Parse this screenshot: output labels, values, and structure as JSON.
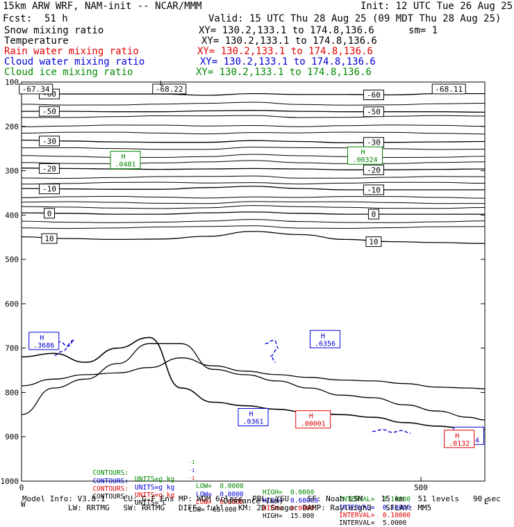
{
  "header": {
    "model": "15km ARW WRF, NAM-init -- NCAR/MMM",
    "init": "Init: 12 UTC Tue 26 Aug 25",
    "fcst_label": "Fcst:",
    "fcst_value": "51 h",
    "valid": "Valid: 15 UTC Thu 28 Aug 25 (09 MDT Thu 28 Aug 25)",
    "fields": [
      {
        "name": "Snow mixing ratio",
        "xy": "XY= 130.2,133.1 to 174.8,136.6",
        "extra": "sm= 1",
        "color": "#000000"
      },
      {
        "name": "Temperature",
        "xy": "XY= 130.2,133.1 to 174.8,136.6",
        "extra": "",
        "color": "#000000"
      },
      {
        "name": "Rain water mixing ratio",
        "xy": "XY= 130.2,133.1 to 174.8,136.6",
        "extra": "",
        "color": "#e00000"
      },
      {
        "name": "Cloud water mixing ratio",
        "xy": "XY= 130.2,133.1 to 174.8,136.6",
        "extra": "",
        "color": "#0000d8"
      },
      {
        "name": "Cloud ice mixing ratio",
        "xy": "XY= 130.2,133.1 to 174.8,136.6",
        "extra": "",
        "color": "#008800"
      }
    ]
  },
  "chart_data": {
    "type": "line",
    "title": "",
    "xlabel": "Distance (km)",
    "ylabel": "",
    "x_ticks": [
      "0",
      "500"
    ],
    "xlim": [
      0,
      580
    ],
    "y_ticks": [
      "100",
      "200",
      "300",
      "400",
      "500",
      "600",
      "700",
      "800",
      "900",
      "1000"
    ],
    "ylim": [
      1000,
      100
    ],
    "y_axis": "pressure (hPa), decreasing upward",
    "temperature_isotherms": [
      {
        "label": "-60",
        "y_levels_hPa": [
          126,
          127,
          127,
          127,
          130,
          126,
          128,
          128,
          129,
          126,
          126
        ]
      },
      {
        "label": "-50",
        "y_levels_hPa": [
          166,
          166,
          167,
          167,
          165,
          164,
          166,
          167,
          167,
          167,
          168
        ]
      },
      {
        "label": "-30",
        "y_levels_hPa": [
          231,
          233,
          235,
          236,
          236,
          232,
          234,
          237,
          236,
          235,
          234
        ]
      },
      {
        "label": "-20",
        "y_levels_hPa": [
          294,
          295,
          296,
          297,
          296,
          295,
          296,
          298,
          298,
          297,
          296
        ]
      },
      {
        "label": "-10",
        "y_levels_hPa": [
          340,
          341,
          342,
          342,
          338,
          335,
          340,
          343,
          343,
          343,
          343
        ]
      },
      {
        "label": "0",
        "y_levels_hPa": [
          395,
          396,
          398,
          398,
          395,
          393,
          396,
          398,
          398,
          398,
          398
        ]
      },
      {
        "label": "10",
        "y_levels_hPa": [
          449,
          453,
          455,
          454,
          448,
          437,
          444,
          455,
          460,
          462,
          464
        ]
      }
    ],
    "unlabeled_isotherms_hPa": [
      150,
      178,
      199,
      215,
      250,
      268,
      282,
      315,
      328,
      360,
      372,
      383,
      415,
      428
    ],
    "terrain_surface": {
      "x_km": [
        0,
        40,
        80,
        120,
        160,
        200,
        240,
        280,
        320,
        360,
        400,
        440,
        480,
        520,
        560,
        580
      ],
      "pressure_hPa": [
        720,
        712,
        732,
        700,
        676,
        790,
        822,
        830,
        838,
        846,
        850,
        856,
        868,
        876,
        882,
        884
      ]
    },
    "lower_isotherms": [
      {
        "x_km": [
          0,
          40,
          80,
          120,
          160,
          200,
          240,
          280,
          320,
          360,
          400,
          440,
          480,
          520,
          560,
          580
        ],
        "pressure_hPa": [
          850,
          790,
          770,
          735,
          690,
          690,
          748,
          760,
          774,
          790,
          806,
          812,
          828,
          842,
          856,
          862
        ]
      },
      {
        "x_km": [
          0,
          40,
          80,
          120,
          160,
          200,
          240,
          280,
          320,
          360,
          400,
          440,
          480,
          520,
          560,
          580
        ],
        "pressure_hPa": [
          785,
          770,
          760,
          756,
          744,
          722,
          740,
          752,
          760,
          766,
          772,
          774,
          780,
          788,
          790,
          792
        ]
      }
    ],
    "max_markers": [
      {
        "field": "Cloud ice mixing ratio",
        "label": "H",
        "value": ".0481",
        "x_km": 130,
        "p_hPa": 275,
        "color": "#008800"
      },
      {
        "field": "Cloud ice mixing ratio",
        "label": "H",
        "value": ".00324",
        "x_km": 430,
        "p_hPa": 265,
        "color": "#008800"
      },
      {
        "field": "Cloud water mixing ratio",
        "label": "H",
        "value": ".3686",
        "x_km": 28,
        "p_hPa": 683,
        "color": "#0000d8"
      },
      {
        "field": "Cloud water mixing ratio",
        "label": "H",
        "value": ".6356",
        "x_km": 380,
        "p_hPa": 679,
        "color": "#0000d8"
      },
      {
        "field": "Cloud water mixing ratio",
        "label": "H",
        "value": ".0361",
        "x_km": 290,
        "p_hPa": 855,
        "color": "#0000d8"
      },
      {
        "field": "Cloud water mixing ratio",
        "label": "H",
        "value": ".2234",
        "x_km": 560,
        "p_hPa": 897,
        "color": "#0000d8"
      },
      {
        "field": "Rain water mixing ratio",
        "label": "H",
        "value": ".00001",
        "x_km": 365,
        "p_hPa": 860,
        "color": "#e00000"
      },
      {
        "field": "Rain water mixing ratio",
        "label": "H",
        "value": ".0132",
        "x_km": 548,
        "p_hPa": 904,
        "color": "#e00000"
      }
    ],
    "top_labels": [
      {
        "value": "-67.34",
        "x_km": 18
      },
      {
        "value": "-68.22",
        "x_km": 185
      },
      {
        "value": "-68.11",
        "x_km": 535
      }
    ],
    "top_corner_label": "L",
    "grid": false,
    "legend": "none"
  },
  "contours_footer": [
    {
      "label": "CONTOURS:",
      "units": "UNITS=g kg",
      "sup": "-1",
      "low": "LOW=  0.0000",
      "high": "HIGH=  0.0000",
      "interval": "INTERVAL=  0.10000",
      "color": "#008800"
    },
    {
      "label": "CONTOURS:",
      "units": "UNITS=g kg",
      "sup": "-1",
      "low": "LOW=  0.0000",
      "high": "HIGH=  0.60000",
      "interval": "INTERVAL=  0.10000",
      "color": "#0000d8"
    },
    {
      "label": "CONTOURS:",
      "units": "UNITS=g kg",
      "sup": "-1",
      "low": "LOW=  0.0000",
      "high": "HIGH=  0.0000",
      "interval": "INTERVAL=  0.10000",
      "color": "#e00000"
    },
    {
      "label": "CONTOURS:",
      "units": "UNITS=°C",
      "sup": "",
      "low": "LOW= -65.000",
      "high": "HIGH=  15.000",
      "interval": "INTERVAL=  5.0000",
      "color": "#000000"
    }
  ],
  "model_info": {
    "line1": "Model Info: V3.8.1    CU: G-F Ens MP: WDM 6class  PBL: YSU    SF: Noah LSM    15 km   51 levels   90 sec",
    "line2": "LW: RRTMG   SW: RRTMG   DIFF: full   KM: 2D Smagor DAMP: Rayleigh3   SFLAY: MM5",
    "axis_left": "W",
    "axis_right": "E"
  }
}
